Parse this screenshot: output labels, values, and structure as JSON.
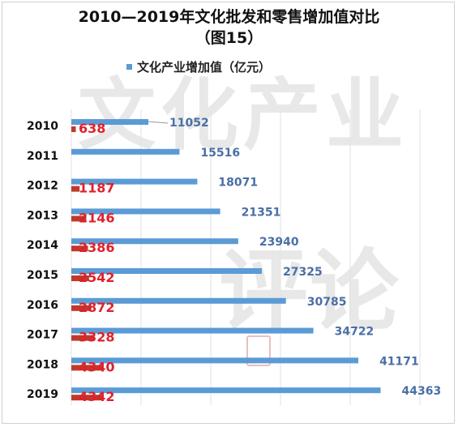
{
  "chart_data": {
    "type": "bar",
    "orientation": "horizontal",
    "title_line1": "2010—2019年文化批发和零售增加值对比",
    "title_line2": "（图15）",
    "categories": [
      "2010",
      "2011",
      "2012",
      "2013",
      "2014",
      "2015",
      "2016",
      "2017",
      "2018",
      "2019"
    ],
    "series": [
      {
        "name": "文化产业增加值（亿元）",
        "color": "#5b9bd5",
        "label_color": "#4a6fa5",
        "values": [
          11052,
          15516,
          18071,
          21351,
          23940,
          27325,
          30785,
          34722,
          41171,
          44363
        ]
      },
      {
        "name": "",
        "color": "#c0392b",
        "label_color": "#e0202b",
        "values": [
          638,
          null,
          1187,
          2146,
          2386,
          2542,
          2872,
          3328,
          4340,
          4342
        ]
      }
    ],
    "xlim": [
      0,
      50000
    ],
    "grid": true,
    "legend_position": "top"
  },
  "watermark": {
    "line1": "文化产业",
    "line2": "评论"
  }
}
